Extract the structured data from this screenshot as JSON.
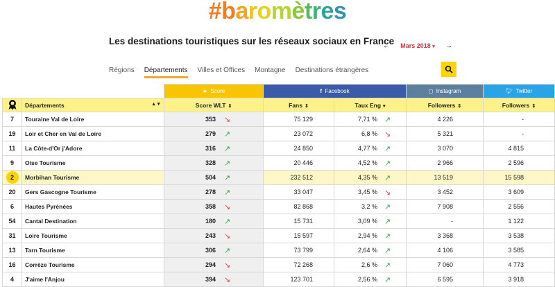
{
  "brand": {
    "logo_text": [
      "#",
      "b",
      "a",
      "r",
      "o",
      "m",
      "è",
      "t",
      "r",
      "e",
      "s"
    ],
    "logo_colors": [
      "#f47c20",
      "#f47c20",
      "#f6a21e",
      "#f6c21a",
      "#e4d31e",
      "#b7d334",
      "#8cc63f",
      "#5bb85c",
      "#3eb47b",
      "#2ea39a",
      "#3294b0"
    ]
  },
  "header": {
    "subtitle": "Les destinations touristiques sur les réseaux sociaux en France",
    "month": "Mars 2018",
    "prev": "←",
    "next": "→"
  },
  "tabs": [
    {
      "label": "Régions",
      "active": false
    },
    {
      "label": "Départements",
      "active": true
    },
    {
      "label": "Villes et Offices",
      "active": false
    },
    {
      "label": "Montagne",
      "active": false
    },
    {
      "label": "Destinations étrangères",
      "active": false
    }
  ],
  "table": {
    "groups": {
      "score": {
        "label": "Score",
        "color": "#f9c500"
      },
      "facebook": {
        "label": "Facebook",
        "color": "#3b5aa8"
      },
      "instagram": {
        "label": "Instagram",
        "color": "#5d7f9e"
      },
      "twitter": {
        "label": "Twitter",
        "color": "#29a4e6"
      }
    },
    "columns": {
      "departements": "Départements",
      "score_wlt": "Score WLT",
      "fans": "Fans",
      "taux_eng": "Taux Eng",
      "ig_followers": "Followers",
      "tw_followers": "Followers"
    },
    "rows": [
      {
        "rank": "7",
        "name": "Touraine Val de Loire",
        "score": "353",
        "score_trend": "down",
        "fans": "75 129",
        "eng": "7,71 %",
        "eng_trend": "up",
        "ig": "4 226",
        "tw": "-"
      },
      {
        "rank": "19",
        "name": "Loir et Cher en Val de Loire",
        "score": "279",
        "score_trend": "up",
        "fans": "23 072",
        "eng": "6,8 %",
        "eng_trend": "down",
        "ig": "5 321",
        "tw": "-"
      },
      {
        "rank": "11",
        "name": "La Côte-d'Or j'Adore",
        "score": "316",
        "score_trend": "up",
        "fans": "24 850",
        "eng": "4,77 %",
        "eng_trend": "up",
        "ig": "3 070",
        "tw": "4 815"
      },
      {
        "rank": "9",
        "name": "Oise Tourisme",
        "score": "328",
        "score_trend": "up",
        "fans": "20 446",
        "eng": "4,52 %",
        "eng_trend": "up",
        "ig": "2 966",
        "tw": "2 596"
      },
      {
        "rank": "2",
        "name": "Morbihan Tourisme",
        "score": "504",
        "score_trend": "up",
        "fans": "232 512",
        "eng": "4,35 %",
        "eng_trend": "up",
        "ig": "13 519",
        "tw": "15 598",
        "highlight": true
      },
      {
        "rank": "20",
        "name": "Gers Gascogne Tourisme",
        "score": "278",
        "score_trend": "up",
        "fans": "33 047",
        "eng": "3,45 %",
        "eng_trend": "down",
        "ig": "3 452",
        "tw": "3 609"
      },
      {
        "rank": "6",
        "name": "Hautes Pyrénées",
        "score": "358",
        "score_trend": "down",
        "fans": "82 868",
        "eng": "3,2 %",
        "eng_trend": "up",
        "ig": "7 908",
        "tw": "2 556"
      },
      {
        "rank": "54",
        "name": "Cantal Destination",
        "score": "180",
        "score_trend": "up",
        "fans": "15 731",
        "eng": "3,09 %",
        "eng_trend": "up",
        "ig": "-",
        "tw": "1 122"
      },
      {
        "rank": "31",
        "name": "Loire Tourisme",
        "score": "243",
        "score_trend": "down",
        "fans": "15 597",
        "eng": "2,94 %",
        "eng_trend": "up",
        "ig": "3 368",
        "tw": "3 538"
      },
      {
        "rank": "13",
        "name": "Tarn Tourisme",
        "score": "306",
        "score_trend": "up",
        "fans": "73 799",
        "eng": "2,64 %",
        "eng_trend": "up",
        "ig": "4 106",
        "tw": "3 585"
      },
      {
        "rank": "16",
        "name": "Corrèze Tourisme",
        "score": "294",
        "score_trend": "down",
        "fans": "72 268",
        "eng": "2,6 %",
        "eng_trend": "up",
        "ig": "7 060",
        "tw": "4 773"
      },
      {
        "rank": "4",
        "name": "J'aime l'Anjou",
        "score": "394",
        "score_trend": "down",
        "fans": "123 701",
        "eng": "2,56 %",
        "eng_trend": "up",
        "ig": "6 595",
        "tw": "3 918"
      }
    ]
  }
}
